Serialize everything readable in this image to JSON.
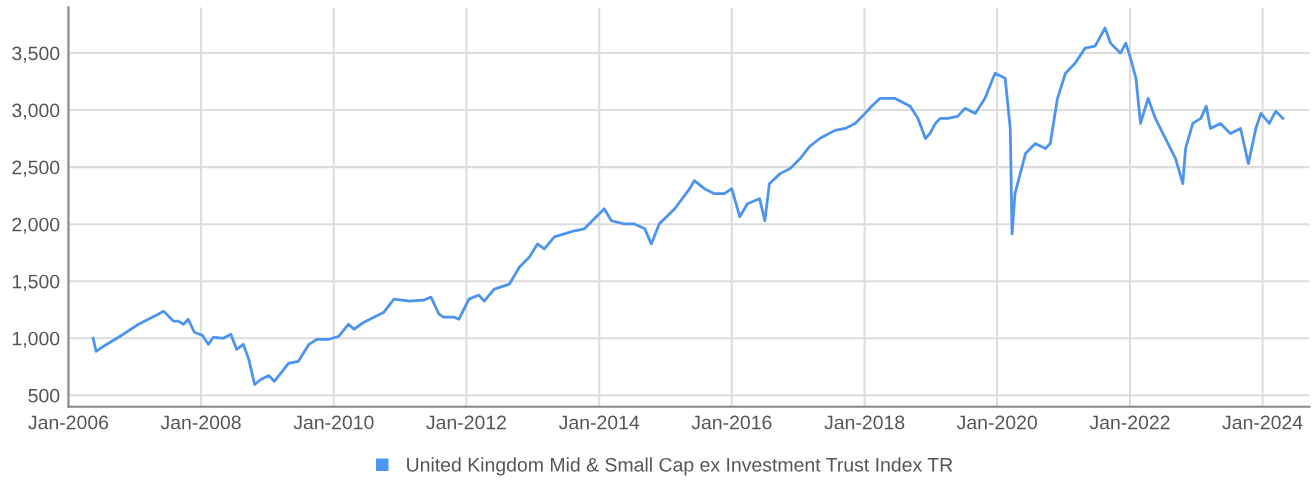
{
  "chart_data": {
    "type": "line",
    "xlim": [
      "2006-01-01",
      "2024-09-15"
    ],
    "ylim": [
      400,
      3900
    ],
    "xticks": [
      {
        "value": "2006-01",
        "label": "Jan-2006"
      },
      {
        "value": "2008-01",
        "label": "Jan-2008"
      },
      {
        "value": "2010-01",
        "label": "Jan-2010"
      },
      {
        "value": "2012-01",
        "label": "Jan-2012"
      },
      {
        "value": "2014-01",
        "label": "Jan-2014"
      },
      {
        "value": "2016-01",
        "label": "Jan-2016"
      },
      {
        "value": "2018-01",
        "label": "Jan-2018"
      },
      {
        "value": "2020-01",
        "label": "Jan-2020"
      },
      {
        "value": "2022-01",
        "label": "Jan-2022"
      },
      {
        "value": "2024-01",
        "label": "Jan-2024"
      }
    ],
    "yticks": [
      500,
      {
        "value": 1000,
        "label": "1,000"
      },
      {
        "value": 1500,
        "label": "1,500"
      },
      {
        "value": 2000,
        "label": "2,000"
      },
      {
        "value": 2500,
        "label": "2,500"
      },
      {
        "value": 3000,
        "label": "3,000"
      },
      {
        "value": 3500,
        "label": "3,500"
      }
    ],
    "grid": true,
    "legend": "bottom",
    "marker": "none",
    "line_style": "solid",
    "series": [
      {
        "name": "United Kingdom Mid & Small Cap ex Investment Trust Index TR",
        "color": "#4d94f0",
        "x": [
          "2006-05-17",
          "2006-06-02",
          "2006-07-04",
          "2006-10-04",
          "2007-01-22",
          "2007-05-10",
          "2007-06-09",
          "2007-08-03",
          "2007-08-28",
          "2007-09-27",
          "2007-10-22",
          "2007-11-25",
          "2008-01-08",
          "2008-02-10",
          "2008-03-09",
          "2008-05-03",
          "2008-06-13",
          "2008-07-15",
          "2008-08-21",
          "2008-09-20",
          "2008-10-22",
          "2008-11-25",
          "2009-01-08",
          "2009-02-07",
          "2009-04-01",
          "2009-04-26",
          "2009-06-20",
          "2009-08-17",
          "2009-10-01",
          "2009-12-05",
          "2010-01-29",
          "2010-03-23",
          "2010-04-22",
          "2010-06-16",
          "2010-08-10",
          "2010-10-04",
          "2010-11-28",
          "2011-02-21",
          "2011-05-10",
          "2011-06-20",
          "2011-08-03",
          "2011-08-28",
          "2011-10-26",
          "2011-11-21",
          "2012-01-15",
          "2012-03-09",
          "2012-04-08",
          "2012-06-02",
          "2012-08-25",
          "2012-10-19",
          "2012-12-13",
          "2013-01-26",
          "2013-03-05",
          "2013-04-29",
          "2013-06-23",
          "2013-08-17",
          "2013-10-11",
          "2013-12-05",
          "2014-01-29",
          "2014-03-09",
          "2014-05-17",
          "2014-07-11",
          "2014-09-09",
          "2014-10-15",
          "2014-11-28",
          "2015-02-21",
          "2015-05-14",
          "2015-06-09",
          "2015-08-03",
          "2015-09-27",
          "2015-11-21",
          "2016-01-01",
          "2016-02-14",
          "2016-03-27",
          "2016-06-02",
          "2016-07-01",
          "2016-07-26",
          "2016-09-23",
          "2016-11-17",
          "2017-01-11",
          "2017-03-05",
          "2017-04-29",
          "2017-07-22",
          "2017-09-16",
          "2017-11-10",
          "2018-01-04",
          "2018-01-29",
          "2018-03-27",
          "2018-06-16",
          "2018-09-09",
          "2018-10-22",
          "2018-12-02",
          "2018-12-27",
          "2019-01-26",
          "2019-02-21",
          "2019-04-04",
          "2019-05-28",
          "2019-07-08",
          "2019-09-02",
          "2019-10-26",
          "2019-12-20",
          "2020-02-14",
          "2020-03-13",
          "2020-03-23",
          "2020-04-08",
          "2020-06-05",
          "2020-07-29",
          "2020-09-23",
          "2020-10-19",
          "2020-11-28",
          "2021-01-11",
          "2021-03-05",
          "2021-04-29",
          "2021-06-23",
          "2021-08-17",
          "2021-09-16",
          "2021-11-10",
          "2021-12-09",
          "2022-01-04",
          "2022-02-03",
          "2022-02-28",
          "2022-04-11",
          "2022-05-21",
          "2022-07-15",
          "2022-09-09",
          "2022-10-19",
          "2022-11-03",
          "2022-12-13",
          "2023-01-26",
          "2023-02-25",
          "2023-03-20",
          "2023-05-14",
          "2023-07-08",
          "2023-09-02",
          "2023-10-15",
          "2023-11-25",
          "2023-12-23",
          "2024-02-07",
          "2024-03-13",
          "2024-04-22"
        ],
        "values": [
          1000,
          886,
          921,
          1009,
          1123,
          1211,
          1238,
          1150,
          1150,
          1123,
          1167,
          1053,
          1026,
          947,
          1009,
          1000,
          1035,
          903,
          947,
          815,
          595,
          639,
          674,
          622,
          727,
          780,
          798,
          947,
          991,
          991,
          1018,
          1123,
          1079,
          1141,
          1185,
          1229,
          1343,
          1326,
          1334,
          1361,
          1211,
          1185,
          1185,
          1167,
          1343,
          1378,
          1326,
          1431,
          1475,
          1625,
          1713,
          1827,
          1783,
          1889,
          1915,
          1942,
          1959,
          2047,
          2135,
          2030,
          2003,
          2003,
          1959,
          1827,
          2003,
          2135,
          2311,
          2382,
          2311,
          2267,
          2267,
          2311,
          2065,
          2179,
          2223,
          2030,
          2355,
          2443,
          2487,
          2575,
          2681,
          2751,
          2822,
          2839,
          2883,
          2971,
          3015,
          3103,
          3103,
          3033,
          2927,
          2751,
          2795,
          2883,
          2927,
          2927,
          2945,
          3015,
          2971,
          3103,
          3323,
          3279,
          2839,
          1915,
          2267,
          2619,
          2707,
          2663,
          2707,
          3103,
          3323,
          3411,
          3543,
          3561,
          3719,
          3587,
          3499,
          3587,
          3455,
          3279,
          2883,
          3103,
          2927,
          2751,
          2575,
          2355,
          2663,
          2883,
          2927,
          3033,
          2839,
          2883,
          2795,
          2839,
          2531,
          2839,
          2971,
          2883,
          2989,
          2927
        ]
      }
    ]
  }
}
